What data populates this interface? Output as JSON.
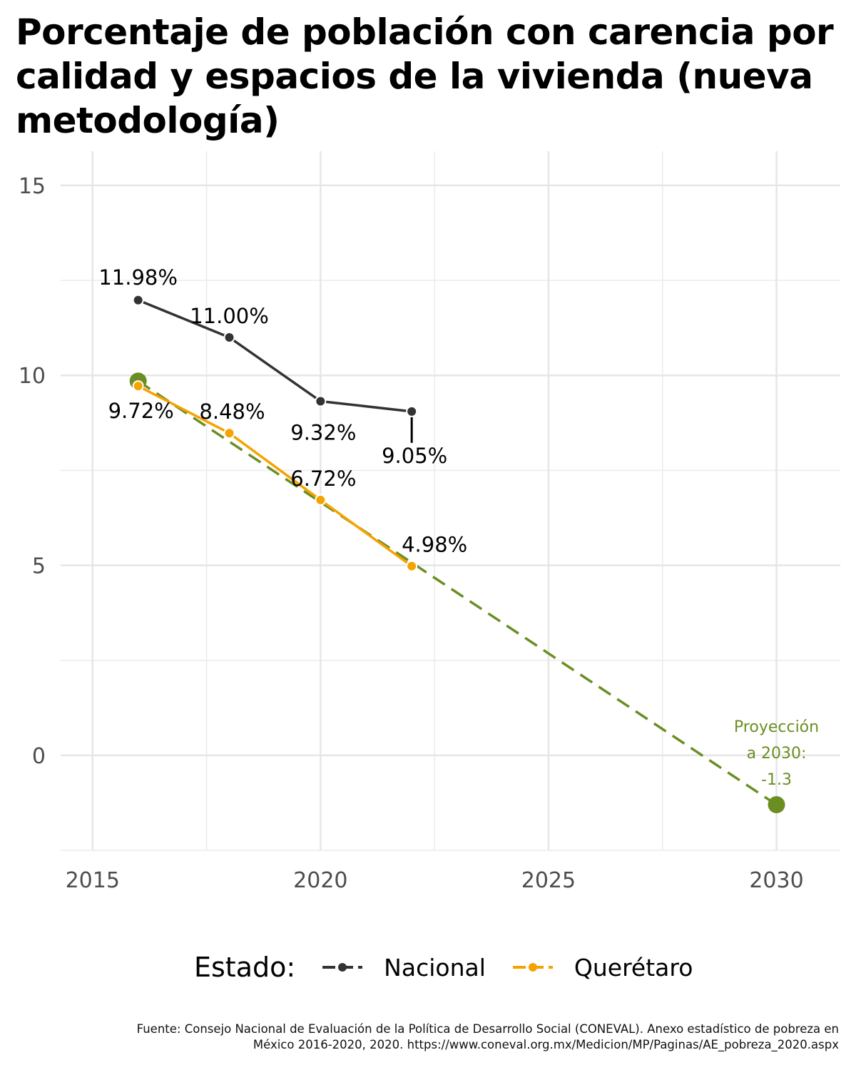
{
  "chart_data": {
    "type": "line",
    "title": "Porcentaje de población con carencia por calidad y espacios de la vivienda (nueva metodología)",
    "xlabel": "",
    "ylabel": "",
    "xlim": [
      2014.3,
      2031.4
    ],
    "ylim": [
      -2.5,
      15.9
    ],
    "x_ticks": [
      2015,
      2020,
      2025,
      2030
    ],
    "y_ticks": [
      0,
      5,
      10,
      15
    ],
    "grid": true,
    "legend_position": "bottom",
    "legend_title": "Estado:",
    "series": [
      {
        "name": "Nacional",
        "color": "#333333",
        "x": [
          2016,
          2018,
          2020,
          2022
        ],
        "y": [
          11.98,
          11.0,
          9.32,
          9.05
        ],
        "labels": [
          "11.98%",
          "11.00%",
          "9.32%",
          "9.05%"
        ]
      },
      {
        "name": "Querétaro",
        "color": "#F5A300",
        "x": [
          2016,
          2018,
          2020,
          2022
        ],
        "y": [
          9.72,
          8.48,
          6.72,
          4.98
        ],
        "labels": [
          "9.72%",
          "8.48%",
          "6.72%",
          "4.98%"
        ]
      }
    ],
    "projection": {
      "color": "#6B8E23",
      "x": [
        2016,
        2030
      ],
      "y": [
        9.85,
        -1.3
      ],
      "label_lines": [
        "Proyección",
        "a 2030:",
        "-1.3"
      ]
    },
    "source_lines": [
      "Fuente: Consejo Nacional de Evaluación de la Política de Desarrollo Social (CONEVAL). Anexo estadístico de pobreza en",
      "México 2016-2020, 2020. https://www.coneval.org.mx/Medicion/MP/Paginas/AE_pobreza_2020.aspx"
    ]
  }
}
